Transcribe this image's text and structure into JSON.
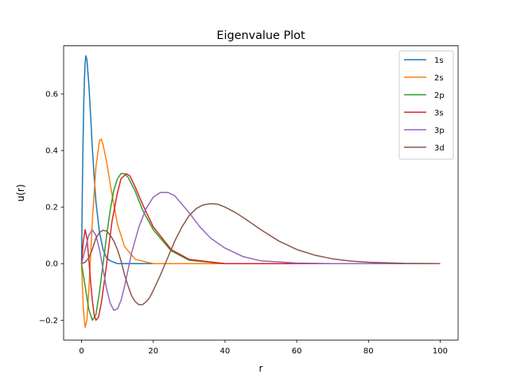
{
  "chart_data": {
    "type": "line",
    "title": "Eigenvalue Plot",
    "xlabel": "r",
    "ylabel": "u(r)",
    "xlim": [
      -5,
      105
    ],
    "ylim": [
      -0.27,
      0.77
    ],
    "xticks": [
      0,
      20,
      40,
      60,
      80,
      100
    ],
    "xtick_labels": [
      "0",
      "20",
      "40",
      "60",
      "80",
      "100"
    ],
    "yticks": [
      -0.2,
      0.0,
      0.2,
      0.4,
      0.6
    ],
    "ytick_labels": [
      "−0.2",
      "0.0",
      "0.2",
      "0.4",
      "0.6"
    ],
    "grid": false,
    "legend_position": "top-right",
    "series": [
      {
        "name": "1s",
        "color": "#1f77b4",
        "points": [
          [
            0,
            0
          ],
          [
            0.2,
            0.24
          ],
          [
            0.4,
            0.42
          ],
          [
            0.6,
            0.56
          ],
          [
            0.8,
            0.65
          ],
          [
            1.0,
            0.71
          ],
          [
            1.2,
            0.735
          ],
          [
            1.5,
            0.72
          ],
          [
            2,
            0.64
          ],
          [
            2.5,
            0.53
          ],
          [
            3,
            0.41
          ],
          [
            3.5,
            0.31
          ],
          [
            4,
            0.22
          ],
          [
            5,
            0.11
          ],
          [
            6,
            0.05
          ],
          [
            7,
            0.02
          ],
          [
            8,
            0.01
          ],
          [
            10,
            0.0
          ],
          [
            15,
            0.0
          ],
          [
            100,
            0.0
          ]
        ]
      },
      {
        "name": "2s",
        "color": "#ff7f0e",
        "points": [
          [
            0,
            0
          ],
          [
            0.5,
            -0.16
          ],
          [
            1,
            -0.225
          ],
          [
            1.5,
            -0.2
          ],
          [
            2,
            -0.1
          ],
          [
            2.5,
            0.02
          ],
          [
            3,
            0.15
          ],
          [
            4,
            0.34
          ],
          [
            5,
            0.435
          ],
          [
            5.5,
            0.44
          ],
          [
            6,
            0.42
          ],
          [
            7,
            0.36
          ],
          [
            8,
            0.28
          ],
          [
            10,
            0.14
          ],
          [
            12,
            0.06
          ],
          [
            15,
            0.015
          ],
          [
            20,
            0.0
          ],
          [
            100,
            0.0
          ]
        ]
      },
      {
        "name": "2p",
        "color": "#2ca02c",
        "points": [
          [
            0,
            0
          ],
          [
            1,
            -0.08
          ],
          [
            2,
            -0.16
          ],
          [
            3,
            -0.2
          ],
          [
            4,
            -0.18
          ],
          [
            5,
            -0.1
          ],
          [
            6,
            0.0
          ],
          [
            7,
            0.1
          ],
          [
            8,
            0.19
          ],
          [
            9,
            0.26
          ],
          [
            10,
            0.3
          ],
          [
            11,
            0.318
          ],
          [
            12,
            0.318
          ],
          [
            13,
            0.305
          ],
          [
            15,
            0.255
          ],
          [
            17,
            0.19
          ],
          [
            20,
            0.12
          ],
          [
            25,
            0.045
          ],
          [
            30,
            0.012
          ],
          [
            40,
            0.0
          ],
          [
            100,
            0.0
          ]
        ]
      },
      {
        "name": "3s",
        "color": "#d62728",
        "points": [
          [
            0,
            0
          ],
          [
            0.5,
            0.08
          ],
          [
            1,
            0.12
          ],
          [
            1.5,
            0.09
          ],
          [
            2,
            0.02
          ],
          [
            2.5,
            -0.06
          ],
          [
            3,
            -0.13
          ],
          [
            3.5,
            -0.18
          ],
          [
            4,
            -0.2
          ],
          [
            4.7,
            -0.19
          ],
          [
            5.5,
            -0.14
          ],
          [
            6.5,
            -0.05
          ],
          [
            7.5,
            0.05
          ],
          [
            8.5,
            0.15
          ],
          [
            10,
            0.25
          ],
          [
            11,
            0.3
          ],
          [
            12.5,
            0.318
          ],
          [
            13.5,
            0.31
          ],
          [
            15,
            0.27
          ],
          [
            17,
            0.21
          ],
          [
            20,
            0.13
          ],
          [
            25,
            0.05
          ],
          [
            30,
            0.015
          ],
          [
            40,
            0.0
          ],
          [
            100,
            0.0
          ]
        ]
      },
      {
        "name": "3p",
        "color": "#9467bd",
        "points": [
          [
            0,
            0
          ],
          [
            1,
            0.05
          ],
          [
            2,
            0.1
          ],
          [
            3,
            0.12
          ],
          [
            4,
            0.1
          ],
          [
            5,
            0.05
          ],
          [
            6,
            -0.02
          ],
          [
            7,
            -0.09
          ],
          [
            8,
            -0.14
          ],
          [
            9,
            -0.165
          ],
          [
            10,
            -0.16
          ],
          [
            11,
            -0.13
          ],
          [
            12,
            -0.08
          ],
          [
            13,
            -0.02
          ],
          [
            14,
            0.04
          ],
          [
            16,
            0.13
          ],
          [
            18,
            0.195
          ],
          [
            20,
            0.235
          ],
          [
            22,
            0.252
          ],
          [
            24,
            0.252
          ],
          [
            26,
            0.24
          ],
          [
            28,
            0.21
          ],
          [
            30,
            0.18
          ],
          [
            33,
            0.13
          ],
          [
            36,
            0.09
          ],
          [
            40,
            0.055
          ],
          [
            45,
            0.025
          ],
          [
            50,
            0.01
          ],
          [
            60,
            0.002
          ],
          [
            70,
            0.0
          ],
          [
            100,
            0.0
          ]
        ]
      },
      {
        "name": "3d",
        "color": "#8c564b",
        "points": [
          [
            0,
            0
          ],
          [
            1,
            0.005
          ],
          [
            2,
            0.02
          ],
          [
            3,
            0.05
          ],
          [
            4,
            0.09
          ],
          [
            5,
            0.11
          ],
          [
            6,
            0.118
          ],
          [
            7,
            0.115
          ],
          [
            8,
            0.1
          ],
          [
            9,
            0.08
          ],
          [
            10,
            0.05
          ],
          [
            11,
            0.01
          ],
          [
            12,
            -0.04
          ],
          [
            13,
            -0.08
          ],
          [
            14,
            -0.115
          ],
          [
            15,
            -0.135
          ],
          [
            16,
            -0.145
          ],
          [
            17,
            -0.145
          ],
          [
            18,
            -0.135
          ],
          [
            19,
            -0.12
          ],
          [
            20,
            -0.095
          ],
          [
            22,
            -0.04
          ],
          [
            24,
            0.02
          ],
          [
            26,
            0.08
          ],
          [
            28,
            0.13
          ],
          [
            30,
            0.17
          ],
          [
            32,
            0.195
          ],
          [
            34,
            0.208
          ],
          [
            36,
            0.212
          ],
          [
            38,
            0.21
          ],
          [
            40,
            0.2
          ],
          [
            43,
            0.18
          ],
          [
            46,
            0.155
          ],
          [
            50,
            0.12
          ],
          [
            55,
            0.08
          ],
          [
            60,
            0.05
          ],
          [
            65,
            0.03
          ],
          [
            70,
            0.017
          ],
          [
            75,
            0.009
          ],
          [
            80,
            0.005
          ],
          [
            90,
            0.001
          ],
          [
            100,
            0.0
          ]
        ]
      }
    ]
  }
}
